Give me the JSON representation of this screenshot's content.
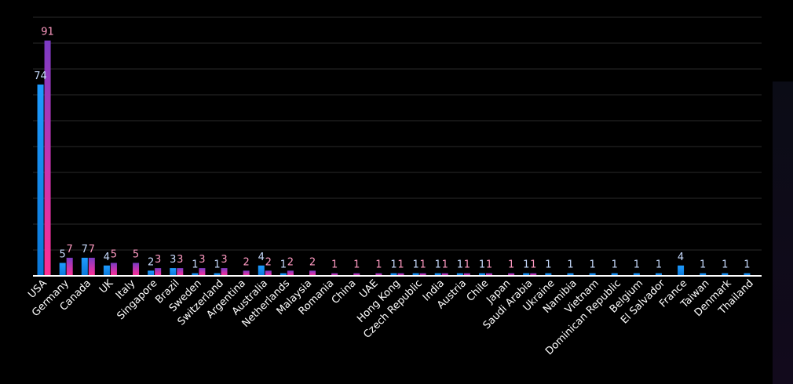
{
  "chart_data": {
    "type": "bar",
    "categories": [
      "USA",
      "Germany",
      "Canada",
      "UK",
      "Italy",
      "Singapore",
      "Brazil",
      "Sweden",
      "Switzerland",
      "Argentina",
      "Australia",
      "Netherlands",
      "Malaysia",
      "Romania",
      "China",
      "UAE",
      "Hong Kong",
      "Czech Republic",
      "India",
      "Austria",
      "Chile",
      "Japan",
      "Saudi Arabia",
      "Ukraine",
      "Namibia",
      "Vietnam",
      "Dominican Republic",
      "Belgium",
      "El Salvador",
      "France",
      "Taiwan",
      "Denmark",
      "Thailand"
    ],
    "series": [
      {
        "values": [
          74,
          5,
          7,
          4,
          null,
          2,
          3,
          1,
          1,
          null,
          4,
          1,
          null,
          null,
          null,
          null,
          1,
          1,
          1,
          1,
          1,
          null,
          1,
          1,
          1,
          1,
          1,
          1,
          1,
          4,
          1,
          1,
          1
        ],
        "color": "#1ea7ff"
      },
      {
        "values": [
          91,
          7,
          7,
          5,
          5,
          3,
          3,
          3,
          3,
          2,
          2,
          2,
          2,
          1,
          1,
          1,
          1,
          1,
          1,
          1,
          1,
          1,
          1,
          null,
          null,
          null,
          null,
          null,
          null,
          null,
          null,
          null,
          null
        ],
        "color": "#ff2f92"
      }
    ],
    "ylim": [
      0,
      100
    ],
    "grid": true,
    "legend": "none"
  },
  "colors": {
    "background": "#000000",
    "grid": "#2a2a2a",
    "axis": "#ffffff",
    "series1_label": "#c8dcff",
    "series2_label": "#ff9ac2"
  }
}
